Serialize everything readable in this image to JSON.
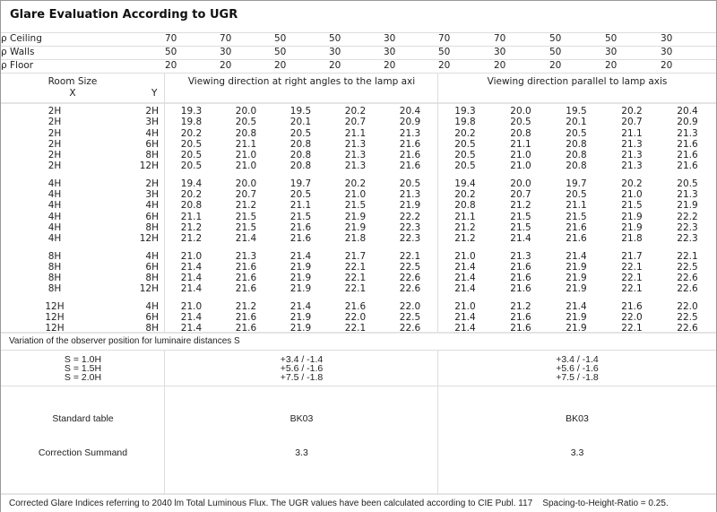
{
  "title": "Glare Evaluation According to UGR",
  "reflectance": [
    {
      "label": "ρ  Ceiling",
      "values": [
        "70",
        "70",
        "50",
        "50",
        "30",
        "70",
        "70",
        "50",
        "50",
        "30"
      ]
    },
    {
      "label": "ρ  Walls",
      "values": [
        "50",
        "30",
        "50",
        "30",
        "30",
        "50",
        "30",
        "50",
        "30",
        "30"
      ]
    },
    {
      "label": "ρ  Floor",
      "values": [
        "20",
        "20",
        "20",
        "20",
        "20",
        "20",
        "20",
        "20",
        "20",
        "20"
      ]
    }
  ],
  "header": {
    "room_size": "Room Size",
    "x": "X",
    "y": "Y",
    "perpendicular": "Viewing direction at right angles to the lamp axi",
    "parallel": "Viewing direction parallel to lamp axis"
  },
  "groups": [
    [
      {
        "x": "2H",
        "y": "2H",
        "v": [
          "19.3",
          "20.0",
          "19.5",
          "20.2",
          "20.4",
          "19.3",
          "20.0",
          "19.5",
          "20.2",
          "20.4"
        ]
      },
      {
        "x": "2H",
        "y": "3H",
        "v": [
          "19.8",
          "20.5",
          "20.1",
          "20.7",
          "20.9",
          "19.8",
          "20.5",
          "20.1",
          "20.7",
          "20.9"
        ]
      },
      {
        "x": "2H",
        "y": "4H",
        "v": [
          "20.2",
          "20.8",
          "20.5",
          "21.1",
          "21.3",
          "20.2",
          "20.8",
          "20.5",
          "21.1",
          "21.3"
        ]
      },
      {
        "x": "2H",
        "y": "6H",
        "v": [
          "20.5",
          "21.1",
          "20.8",
          "21.3",
          "21.6",
          "20.5",
          "21.1",
          "20.8",
          "21.3",
          "21.6"
        ]
      },
      {
        "x": "2H",
        "y": "8H",
        "v": [
          "20.5",
          "21.0",
          "20.8",
          "21.3",
          "21.6",
          "20.5",
          "21.0",
          "20.8",
          "21.3",
          "21.6"
        ]
      },
      {
        "x": "2H",
        "y": "12H",
        "v": [
          "20.5",
          "21.0",
          "20.8",
          "21.3",
          "21.6",
          "20.5",
          "21.0",
          "20.8",
          "21.3",
          "21.6"
        ]
      }
    ],
    [
      {
        "x": "4H",
        "y": "2H",
        "v": [
          "19.4",
          "20.0",
          "19.7",
          "20.2",
          "20.5",
          "19.4",
          "20.0",
          "19.7",
          "20.2",
          "20.5"
        ]
      },
      {
        "x": "4H",
        "y": "3H",
        "v": [
          "20.2",
          "20.7",
          "20.5",
          "21.0",
          "21.3",
          "20.2",
          "20.7",
          "20.5",
          "21.0",
          "21.3"
        ]
      },
      {
        "x": "4H",
        "y": "4H",
        "v": [
          "20.8",
          "21.2",
          "21.1",
          "21.5",
          "21.9",
          "20.8",
          "21.2",
          "21.1",
          "21.5",
          "21.9"
        ]
      },
      {
        "x": "4H",
        "y": "6H",
        "v": [
          "21.1",
          "21.5",
          "21.5",
          "21.9",
          "22.2",
          "21.1",
          "21.5",
          "21.5",
          "21.9",
          "22.2"
        ]
      },
      {
        "x": "4H",
        "y": "8H",
        "v": [
          "21.2",
          "21.5",
          "21.6",
          "21.9",
          "22.3",
          "21.2",
          "21.5",
          "21.6",
          "21.9",
          "22.3"
        ]
      },
      {
        "x": "4H",
        "y": "12H",
        "v": [
          "21.2",
          "21.4",
          "21.6",
          "21.8",
          "22.3",
          "21.2",
          "21.4",
          "21.6",
          "21.8",
          "22.3"
        ]
      }
    ],
    [
      {
        "x": "8H",
        "y": "4H",
        "v": [
          "21.0",
          "21.3",
          "21.4",
          "21.7",
          "22.1",
          "21.0",
          "21.3",
          "21.4",
          "21.7",
          "22.1"
        ]
      },
      {
        "x": "8H",
        "y": "6H",
        "v": [
          "21.4",
          "21.6",
          "21.9",
          "22.1",
          "22.5",
          "21.4",
          "21.6",
          "21.9",
          "22.1",
          "22.5"
        ]
      },
      {
        "x": "8H",
        "y": "8H",
        "v": [
          "21.4",
          "21.6",
          "21.9",
          "22.1",
          "22.6",
          "21.4",
          "21.6",
          "21.9",
          "22.1",
          "22.6"
        ]
      },
      {
        "x": "8H",
        "y": "12H",
        "v": [
          "21.4",
          "21.6",
          "21.9",
          "22.1",
          "22.6",
          "21.4",
          "21.6",
          "21.9",
          "22.1",
          "22.6"
        ]
      }
    ],
    [
      {
        "x": "12H",
        "y": "4H",
        "v": [
          "21.0",
          "21.2",
          "21.4",
          "21.6",
          "22.0",
          "21.0",
          "21.2",
          "21.4",
          "21.6",
          "22.0"
        ]
      },
      {
        "x": "12H",
        "y": "6H",
        "v": [
          "21.4",
          "21.6",
          "21.9",
          "22.0",
          "22.5",
          "21.4",
          "21.6",
          "21.9",
          "22.0",
          "22.5"
        ]
      },
      {
        "x": "12H",
        "y": "8H",
        "v": [
          "21.4",
          "21.6",
          "21.9",
          "22.1",
          "22.6",
          "21.4",
          "21.6",
          "21.9",
          "22.1",
          "22.6"
        ]
      }
    ]
  ],
  "variation": {
    "title": "Variation of the observer position for luminaire distances S",
    "s_labels": [
      "S = 1.0H",
      "S = 1.5H",
      "S = 2.0H"
    ],
    "perpendicular": [
      "+3.4 / -1.4",
      "+5.6 / -1.6",
      "+7.5 / -1.8"
    ],
    "parallel": [
      "+3.4 / -1.4",
      "+5.6 / -1.6",
      "+7.5 / -1.8"
    ]
  },
  "standard_table": {
    "label": "Standard table",
    "perpendicular": "BK03",
    "parallel": "BK03"
  },
  "correction": {
    "label": "Correction Summand",
    "perpendicular": "3.3",
    "parallel": "3.3"
  },
  "footer": "Corrected Glare Indices referring to 2040 lm Total Luminous Flux. The UGR values have been calculated according to CIE Publ. 117    Spacing-to-Height-Ratio = 0.25."
}
